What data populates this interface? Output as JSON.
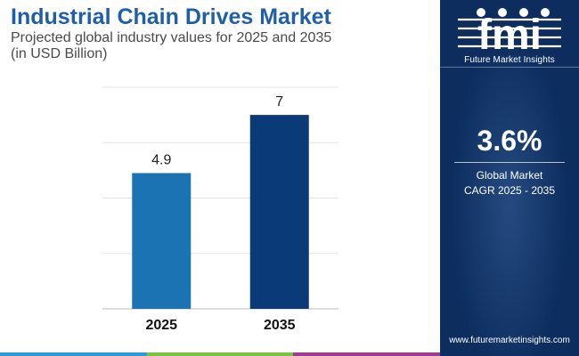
{
  "header": {
    "title": "Industrial Chain Drives Market",
    "subtitle_line1": "Projected global industry values for 2025 and 2035",
    "subtitle_line2": "(in USD Billion)"
  },
  "chart_data": {
    "type": "bar",
    "title": "Industrial Chain Drives Market",
    "subtitle": "Projected global industry values for 2025 and 2035 (in USD Billion)",
    "categories": [
      "2025",
      "2035"
    ],
    "values": [
      4.9,
      7
    ],
    "value_labels": [
      "4.9",
      "7"
    ],
    "bar_colors": [
      "#1c73b4",
      "#0a3a78"
    ],
    "xlabel": "",
    "ylabel": "",
    "ylim": [
      0,
      8
    ],
    "grid": true,
    "legend": "none"
  },
  "sidebar": {
    "logo_text": "fmi",
    "logo_tagline": "Future Market Insights",
    "cagr_value": "3.6%",
    "cagr_label_line1": "Global Market",
    "cagr_label_line2": "CAGR 2025 - 2035",
    "website": "www.futuremarketinsights.com"
  },
  "colors": {
    "title": "#1f5fa8",
    "panel_bg": "#0c2d5e",
    "footer": [
      "#2e9bd6",
      "#7cc242",
      "#9c3d8f"
    ]
  },
  "icons": [
    "fmi-logo-icon"
  ]
}
